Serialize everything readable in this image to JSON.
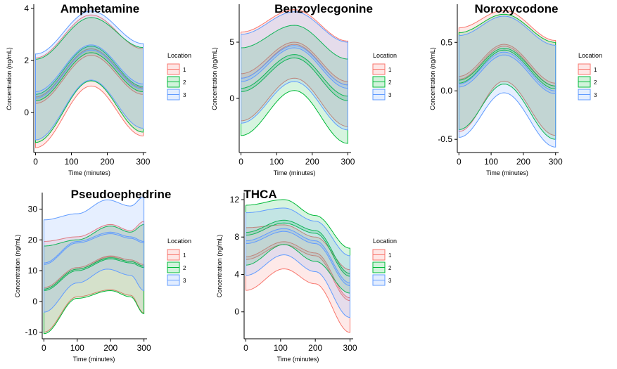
{
  "chart_data": [
    {
      "type": "area",
      "title": "Amphetamine",
      "xlabel": "Time (minutes)",
      "ylabel": "Concentration (ng/mL)",
      "xlim": [
        -5,
        305
      ],
      "ylim": [
        -1.4,
        4.0
      ],
      "xticks": [
        0,
        100,
        200,
        300
      ],
      "yticks": [
        0,
        2,
        4
      ],
      "legend": {
        "title": "Location",
        "entries": [
          "1",
          "2",
          "3"
        ],
        "placement": "right"
      },
      "series": [
        {
          "name": "1",
          "color": "#F8766D",
          "fill": "#F8766D",
          "band_outer": {
            "x": [
              0,
              155,
              300
            ],
            "low": [
              -1.35,
              1.02,
              -0.9
            ],
            "high": [
              2.1,
              3.75,
              2.45
            ]
          },
          "band_inner": {
            "x": [
              0,
              155,
              300
            ],
            "low": [
              0.35,
              2.2,
              0.7
            ],
            "high": [
              0.6,
              2.45,
              0.95
            ]
          }
        },
        {
          "name": "2",
          "color": "#00BA38",
          "fill": "#00BA38",
          "band_outer": {
            "x": [
              0,
              155,
              300
            ],
            "low": [
              -1.15,
              1.22,
              -0.75
            ],
            "high": [
              2.05,
              3.65,
              2.5
            ]
          },
          "band_inner": {
            "x": [
              0,
              155,
              300
            ],
            "low": [
              0.45,
              2.3,
              0.8
            ],
            "high": [
              0.7,
              2.55,
              1.0
            ]
          }
        },
        {
          "name": "3",
          "color": "#619CFF",
          "fill": "#619CFF",
          "band_outer": {
            "x": [
              0,
              155,
              300
            ],
            "low": [
              -1.05,
              1.25,
              -0.6
            ],
            "high": [
              2.25,
              3.9,
              2.65
            ]
          },
          "band_inner": {
            "x": [
              0,
              155,
              300
            ],
            "low": [
              0.55,
              2.4,
              0.9
            ],
            "high": [
              0.8,
              2.6,
              1.1
            ]
          }
        }
      ]
    },
    {
      "type": "area",
      "title": "Benzoylecgonine",
      "xlabel": "Time (minutes)",
      "ylabel": "Concentration (ng/mL)",
      "xlim": [
        -5,
        305
      ],
      "ylim": [
        -4.5,
        8.0
      ],
      "xticks": [
        0,
        100,
        200,
        300
      ],
      "yticks": [
        0,
        5
      ],
      "legend": {
        "title": "Location",
        "entries": [
          "1",
          "2",
          "3"
        ],
        "placement": "right"
      },
      "series": [
        {
          "name": "1",
          "color": "#F8766D",
          "fill": "#F8766D",
          "band_outer": {
            "x": [
              0,
              150,
              300
            ],
            "low": [
              -2.0,
              1.8,
              -2.5
            ],
            "high": [
              5.9,
              7.9,
              5.1
            ]
          },
          "band_inner": {
            "x": [
              0,
              150,
              300
            ],
            "low": [
              1.8,
              4.8,
              1.2
            ],
            "high": [
              2.2,
              5.0,
              1.5
            ]
          }
        },
        {
          "name": "2",
          "color": "#00BA38",
          "fill": "#00BA38",
          "band_outer": {
            "x": [
              0,
              150,
              300
            ],
            "low": [
              -3.3,
              0.7,
              -4.0
            ],
            "high": [
              4.5,
              6.5,
              3.5
            ]
          },
          "band_inner": {
            "x": [
              0,
              150,
              300
            ],
            "low": [
              0.6,
              3.6,
              -0.2
            ],
            "high": [
              0.9,
              3.9,
              0.2
            ]
          }
        },
        {
          "name": "3",
          "color": "#619CFF",
          "fill": "#619CFF",
          "band_outer": {
            "x": [
              0,
              150,
              300
            ],
            "low": [
              -2.2,
              1.5,
              -2.8
            ],
            "high": [
              5.7,
              7.7,
              5.0
            ]
          },
          "band_inner": {
            "x": [
              0,
              150,
              300
            ],
            "low": [
              1.5,
              4.5,
              0.9
            ],
            "high": [
              1.8,
              4.7,
              1.2
            ]
          }
        }
      ]
    },
    {
      "type": "area",
      "title": "Noroxycodone",
      "xlabel": "Time (minutes)",
      "ylabel": "Concentration (ng/mL)",
      "xlim": [
        -5,
        305
      ],
      "ylim": [
        -0.6,
        0.85
      ],
      "xticks": [
        0,
        100,
        200,
        300
      ],
      "yticks": [
        -0.5,
        0.0,
        0.5
      ],
      "legend": {
        "title": "Location",
        "entries": [
          "1",
          "2",
          "3"
        ],
        "placement": "right"
      },
      "series": [
        {
          "name": "1",
          "color": "#F8766D",
          "fill": "#F8766D",
          "band_outer": {
            "x": [
              0,
              140,
              300
            ],
            "low": [
              -0.42,
              0.1,
              -0.46
            ],
            "high": [
              0.65,
              0.83,
              0.52
            ]
          },
          "band_inner": {
            "x": [
              0,
              140,
              300
            ],
            "low": [
              0.12,
              0.46,
              0.05
            ],
            "high": [
              0.15,
              0.48,
              0.08
            ]
          }
        },
        {
          "name": "2",
          "color": "#00BA38",
          "fill": "#00BA38",
          "band_outer": {
            "x": [
              0,
              140,
              300
            ],
            "low": [
              -0.4,
              0.07,
              -0.5
            ],
            "high": [
              0.6,
              0.79,
              0.5
            ]
          },
          "band_inner": {
            "x": [
              0,
              140,
              300
            ],
            "low": [
              0.08,
              0.42,
              0.02
            ],
            "high": [
              0.11,
              0.44,
              0.05
            ]
          }
        },
        {
          "name": "3",
          "color": "#619CFF",
          "fill": "#619CFF",
          "band_outer": {
            "x": [
              0,
              140,
              300
            ],
            "low": [
              -0.48,
              -0.02,
              -0.58
            ],
            "high": [
              0.57,
              0.77,
              0.47
            ]
          },
          "band_inner": {
            "x": [
              0,
              140,
              300
            ],
            "low": [
              0.04,
              0.37,
              -0.03
            ],
            "high": [
              0.07,
              0.4,
              0.0
            ]
          }
        }
      ]
    },
    {
      "type": "area",
      "title": "Pseudoephedrine",
      "xlabel": "Time (minutes)",
      "ylabel": "Concentration (ng/mL)",
      "xlim": [
        -5,
        305
      ],
      "ylim": [
        -11,
        34
      ],
      "xticks": [
        0,
        100,
        200,
        300
      ],
      "yticks": [
        -10,
        0,
        10,
        20,
        30
      ],
      "legend": {
        "title": "Location",
        "entries": [
          "1",
          "2",
          "3"
        ],
        "placement": "right"
      },
      "series": [
        {
          "name": "1",
          "color": "#F8766D",
          "fill": "#F8766D",
          "band_outer": {
            "x": [
              0,
              100,
              200,
              260,
              300
            ],
            "low": [
              -10.0,
              1.5,
              3.8,
              2.0,
              -3.8
            ],
            "high": [
              19.5,
              21.0,
              25.0,
              23.0,
              26.0
            ]
          },
          "band_inner": {
            "x": [
              0,
              100,
              200,
              260,
              300
            ],
            "low": [
              4.0,
              10.5,
              14.5,
              13.0,
              11.5
            ],
            "high": [
              4.5,
              11.0,
              14.8,
              13.5,
              12.0
            ]
          }
        },
        {
          "name": "2",
          "color": "#00BA38",
          "fill": "#00BA38",
          "band_outer": {
            "x": [
              0,
              100,
              200,
              260,
              300
            ],
            "low": [
              -10.5,
              1.0,
              3.5,
              1.5,
              -4.0
            ],
            "high": [
              18.0,
              20.0,
              24.5,
              22.5,
              25.0
            ]
          },
          "band_inner": {
            "x": [
              0,
              100,
              200,
              260,
              300
            ],
            "low": [
              3.5,
              10.0,
              13.8,
              12.5,
              11.0
            ],
            "high": [
              4.0,
              10.5,
              14.2,
              13.0,
              11.5
            ]
          }
        },
        {
          "name": "3",
          "color": "#619CFF",
          "fill": "#619CFF",
          "band_outer": {
            "x": [
              0,
              100,
              190,
              260,
              300
            ],
            "low": [
              -3.5,
              6.0,
              10.5,
              8.5,
              3.5
            ],
            "high": [
              26.5,
              28.5,
              33.0,
              31.0,
              34.0
            ]
          },
          "band_inner": {
            "x": [
              0,
              100,
              200,
              260,
              300
            ],
            "low": [
              12.0,
              19.0,
              22.0,
              20.5,
              19.0
            ],
            "high": [
              12.5,
              19.5,
              22.5,
              21.0,
              19.5
            ]
          }
        }
      ]
    },
    {
      "type": "area",
      "title": "THCA",
      "xlabel": "Time (minutes)",
      "ylabel": "Concentration (ng/mL)",
      "xlim": [
        -5,
        305
      ],
      "ylim": [
        -2.5,
        12.3
      ],
      "xticks": [
        0,
        100,
        200,
        300
      ],
      "yticks": [
        0,
        4,
        8,
        12
      ],
      "legend": {
        "title": "Location",
        "entries": [
          "1",
          "2",
          "3"
        ],
        "placement": "right"
      },
      "series": [
        {
          "name": "1",
          "color": "#F8766D",
          "fill": "#F8766D",
          "band_outer": {
            "x": [
              0,
              110,
              200,
              300
            ],
            "low": [
              2.3,
              4.6,
              3.0,
              -2.2
            ],
            "high": [
              9.0,
              9.3,
              8.0,
              4.5
            ]
          },
          "band_inner": {
            "x": [
              0,
              110,
              200,
              300
            ],
            "low": [
              5.6,
              7.2,
              6.0,
              1.2
            ],
            "high": [
              5.9,
              7.5,
              6.3,
              1.5
            ]
          }
        },
        {
          "name": "2",
          "color": "#00BA38",
          "fill": "#00BA38",
          "band_outer": {
            "x": [
              0,
              110,
              200,
              300
            ],
            "low": [
              5.0,
              7.2,
              5.4,
              2.0
            ],
            "high": [
              11.4,
              12.0,
              10.3,
              6.8
            ]
          },
          "band_inner": {
            "x": [
              0,
              110,
              200,
              300
            ],
            "low": [
              8.2,
              9.5,
              8.4,
              3.8
            ],
            "high": [
              8.5,
              9.8,
              8.7,
              4.1
            ]
          }
        },
        {
          "name": "3",
          "color": "#619CFF",
          "fill": "#619CFF",
          "band_outer": {
            "x": [
              0,
              110,
              200,
              300
            ],
            "low": [
              3.9,
              6.1,
              4.3,
              -0.6
            ],
            "high": [
              10.6,
              11.1,
              9.7,
              6.0
            ]
          },
          "band_inner": {
            "x": [
              0,
              110,
              200,
              300
            ],
            "low": [
              7.3,
              8.6,
              7.3,
              2.8
            ],
            "high": [
              7.6,
              8.9,
              7.6,
              3.1
            ]
          }
        }
      ]
    }
  ]
}
